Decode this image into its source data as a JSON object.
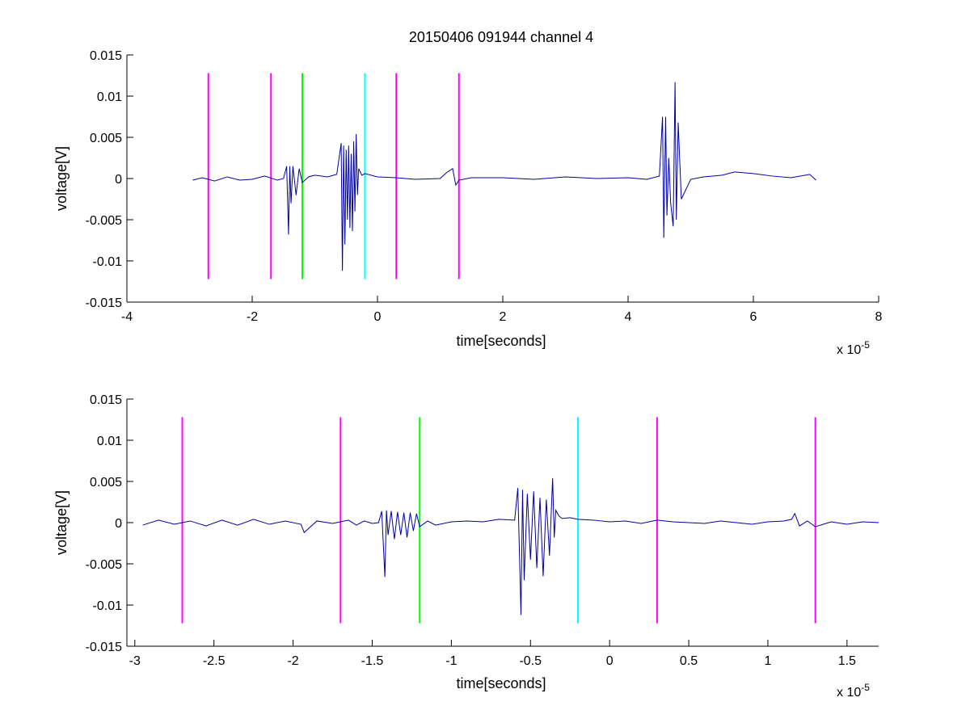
{
  "figure": {
    "background": "#ffffff"
  },
  "chart_data": [
    {
      "type": "line",
      "title": "20150406 091944 channel 4",
      "xlabel": "time[seconds]",
      "ylabel": "voltage[V]",
      "x_exponent_label": "x 10",
      "x_exponent": "-5",
      "x_scale": 1e-05,
      "xlim": [
        -4,
        8
      ],
      "ylim": [
        -0.015,
        0.015
      ],
      "xticks": [
        -4,
        -2,
        0,
        2,
        4,
        6,
        8
      ],
      "xtick_labels": [
        "-4",
        "-2",
        "0",
        "2",
        "4",
        "6",
        "8"
      ],
      "yticks": [
        0.015,
        0.01,
        0.005,
        0,
        -0.005,
        -0.01,
        -0.015
      ],
      "ytick_labels": [
        "0.015",
        "0.01",
        "0.005",
        "0",
        "-0.005",
        "-0.01",
        "-0.015"
      ],
      "grid": false,
      "series": [
        {
          "color": "#0000a0",
          "x": [
            -2.95,
            -2.8,
            -2.6,
            -2.4,
            -2.2,
            -2.0,
            -1.8,
            -1.6,
            -1.5,
            -1.45,
            -1.42,
            -1.4,
            -1.38,
            -1.35,
            -1.3,
            -1.25,
            -1.2,
            -1.1,
            -1.0,
            -0.8,
            -0.65,
            -0.58,
            -0.56,
            -0.54,
            -0.52,
            -0.5,
            -0.48,
            -0.46,
            -0.44,
            -0.42,
            -0.4,
            -0.38,
            -0.36,
            -0.34,
            -0.32,
            -0.3,
            -0.25,
            -0.2,
            0.0,
            0.3,
            0.6,
            1.0,
            1.1,
            1.2,
            1.25,
            1.3,
            1.5,
            2.0,
            2.5,
            3.0,
            3.5,
            4.0,
            4.3,
            4.5,
            4.55,
            4.57,
            4.6,
            4.62,
            4.65,
            4.68,
            4.72,
            4.75,
            4.77,
            4.8,
            4.85,
            5.0,
            5.2,
            5.5,
            5.7,
            6.0,
            6.3,
            6.6,
            6.9,
            7.0
          ],
          "y": [
            -0.0002,
            0.0001,
            -0.0003,
            0.0002,
            -0.0002,
            -0.0001,
            0.0003,
            -0.0002,
            0.0,
            0.0015,
            -0.0068,
            0.0015,
            -0.003,
            0.0015,
            -0.002,
            0.0012,
            -0.0005,
            0.0002,
            0.0004,
            0.0002,
            0.0005,
            0.0043,
            -0.0112,
            0.004,
            -0.008,
            0.0035,
            -0.005,
            0.004,
            -0.006,
            0.003,
            -0.0064,
            0.0045,
            -0.004,
            0.0054,
            -0.002,
            0.0012,
            0.0004,
            0.0006,
            0.0002,
            0.0001,
            -0.0001,
            0.0,
            0.0007,
            0.0012,
            -0.0008,
            -0.0002,
            0.0001,
            0.0001,
            -0.0001,
            0.0002,
            0.0,
            0.0001,
            -0.0001,
            0.0003,
            0.0075,
            -0.0072,
            0.0075,
            -0.0045,
            0.0025,
            -0.003,
            -0.0058,
            0.0117,
            -0.005,
            0.0068,
            -0.0025,
            -0.0001,
            0.0002,
            0.0004,
            0.0008,
            0.0006,
            0.0003,
            0.0001,
            0.0005,
            -0.0002
          ]
        }
      ],
      "markers": [
        {
          "x": -2.7,
          "color": "#ff00ff"
        },
        {
          "x": -1.7,
          "color": "#ff00ff"
        },
        {
          "x": -1.2,
          "color": "#00ff00"
        },
        {
          "x": -0.2,
          "color": "#00ffff"
        },
        {
          "x": 0.3,
          "color": "#ff00ff"
        },
        {
          "x": 1.3,
          "color": "#ff00ff"
        }
      ],
      "marker_range": [
        -0.0122,
        0.0128
      ]
    },
    {
      "type": "line",
      "title": "",
      "xlabel": "time[seconds]",
      "ylabel": "voltage[V]",
      "x_exponent_label": "x 10",
      "x_exponent": "-5",
      "x_scale": 1e-05,
      "xlim": [
        -3.05,
        1.7
      ],
      "ylim": [
        -0.015,
        0.015
      ],
      "xticks": [
        -3,
        -2.5,
        -2,
        -1.5,
        -1,
        -0.5,
        0,
        0.5,
        1,
        1.5
      ],
      "xtick_labels": [
        "-3",
        "-2.5",
        "-2",
        "-1.5",
        "-1",
        "-0.5",
        "0",
        "0.5",
        "1",
        "1.5"
      ],
      "yticks": [
        0.015,
        0.01,
        0.005,
        0,
        -0.005,
        -0.01,
        -0.015
      ],
      "ytick_labels": [
        "0.015",
        "0.01",
        "0.005",
        "0",
        "-0.005",
        "-0.01",
        "-0.015"
      ],
      "grid": false,
      "series": [
        {
          "color": "#0000a0",
          "x": [
            -2.95,
            -2.85,
            -2.75,
            -2.65,
            -2.55,
            -2.45,
            -2.35,
            -2.25,
            -2.15,
            -2.05,
            -1.95,
            -1.93,
            -1.85,
            -1.75,
            -1.65,
            -1.6,
            -1.55,
            -1.5,
            -1.46,
            -1.44,
            -1.42,
            -1.41,
            -1.4,
            -1.38,
            -1.36,
            -1.34,
            -1.32,
            -1.3,
            -1.28,
            -1.26,
            -1.24,
            -1.22,
            -1.2,
            -1.15,
            -1.1,
            -1.0,
            -0.9,
            -0.8,
            -0.7,
            -0.6,
            -0.58,
            -0.56,
            -0.55,
            -0.54,
            -0.52,
            -0.5,
            -0.48,
            -0.46,
            -0.44,
            -0.42,
            -0.4,
            -0.38,
            -0.36,
            -0.35,
            -0.34,
            -0.32,
            -0.3,
            -0.25,
            -0.2,
            -0.1,
            0.0,
            0.1,
            0.2,
            0.3,
            0.4,
            0.5,
            0.6,
            0.7,
            0.8,
            0.9,
            1.0,
            1.1,
            1.15,
            1.17,
            1.2,
            1.25,
            1.3,
            1.4,
            1.5,
            1.6,
            1.7
          ],
          "y": [
            -0.0003,
            0.0003,
            -0.0002,
            0.0002,
            -0.0004,
            0.0003,
            -0.0003,
            0.0004,
            -0.0002,
            0.0002,
            -0.0002,
            -0.0012,
            0.0002,
            -0.0001,
            0.0003,
            -0.0003,
            0.0002,
            -0.0001,
            0.0,
            0.0014,
            -0.0066,
            0.0015,
            -0.0015,
            0.0014,
            -0.002,
            0.0013,
            -0.0015,
            0.0012,
            -0.0018,
            0.0012,
            -0.001,
            0.0011,
            -0.0005,
            0.0002,
            -0.0003,
            0.0001,
            0.0002,
            0.0001,
            0.0004,
            0.0003,
            0.0042,
            -0.0112,
            0.004,
            -0.007,
            0.0035,
            -0.0045,
            0.0038,
            -0.0055,
            0.003,
            -0.0065,
            0.0028,
            -0.004,
            0.0054,
            -0.0018,
            0.0015,
            0.0008,
            0.0005,
            0.0006,
            0.0004,
            0.0003,
            0.0001,
            0.0002,
            -0.0001,
            0.0003,
            0.0001,
            0.0,
            -0.0001,
            0.0002,
            0.0,
            -0.0002,
            0.0001,
            0.0002,
            0.0004,
            0.0011,
            -0.0004,
            0.0002,
            -0.0005,
            0.0001,
            -0.0002,
            0.0001,
            0.0
          ]
        }
      ],
      "markers": [
        {
          "x": -2.7,
          "color": "#ff00ff"
        },
        {
          "x": -1.7,
          "color": "#ff00ff"
        },
        {
          "x": -1.2,
          "color": "#00ff00"
        },
        {
          "x": -0.2,
          "color": "#00ffff"
        },
        {
          "x": 0.3,
          "color": "#ff00ff"
        },
        {
          "x": 1.3,
          "color": "#ff00ff"
        }
      ],
      "marker_range": [
        -0.0122,
        0.0128
      ]
    }
  ]
}
